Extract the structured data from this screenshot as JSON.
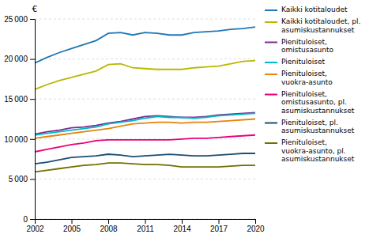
{
  "chart_data": {
    "type": "line",
    "y_label": "€",
    "x": [
      2002,
      2003,
      2004,
      2005,
      2006,
      2007,
      2008,
      2009,
      2010,
      2011,
      2012,
      2013,
      2014,
      2015,
      2016,
      2017,
      2018,
      2019,
      2020
    ],
    "series": [
      {
        "name": "Kaikki kotitaloudet",
        "color": "#1f77b4",
        "values": [
          19500,
          20200,
          20800,
          21300,
          21800,
          22300,
          23200,
          23300,
          23000,
          23300,
          23200,
          23000,
          23000,
          23300,
          23400,
          23500,
          23700,
          23800,
          24000
        ]
      },
      {
        "name": "Kaikki kotitaloudet, pl.\nasumiskustannukset",
        "color": "#b8b800",
        "values": [
          16200,
          16800,
          17300,
          17700,
          18100,
          18500,
          19300,
          19400,
          18900,
          18800,
          18700,
          18700,
          18700,
          18900,
          19000,
          19100,
          19400,
          19700,
          19800
        ]
      },
      {
        "name": "Pienituloiset,\nomistusasunto",
        "color": "#7b2d8b",
        "values": [
          10600,
          10900,
          11100,
          11400,
          11500,
          11700,
          12000,
          12200,
          12500,
          12800,
          12900,
          12800,
          12700,
          12700,
          12800,
          13000,
          13100,
          13200,
          13300
        ]
      },
      {
        "name": "Pienituloiset",
        "color": "#00b8c8",
        "values": [
          10500,
          10700,
          10900,
          11100,
          11300,
          11500,
          11900,
          12100,
          12300,
          12600,
          12800,
          12700,
          12700,
          12600,
          12700,
          12900,
          13000,
          13100,
          13200
        ]
      },
      {
        "name": "Pienituloiset,\nvuokra-asunto",
        "color": "#e8820c",
        "values": [
          10100,
          10300,
          10500,
          10700,
          10900,
          11100,
          11300,
          11600,
          11900,
          12000,
          12100,
          12100,
          12000,
          12100,
          12100,
          12200,
          12300,
          12400,
          12500
        ]
      },
      {
        "name": "Pienituloiset,\nomistusasunto, pl.\nasumiskustannukset",
        "color": "#e8007c",
        "values": [
          8400,
          8700,
          9000,
          9300,
          9500,
          9800,
          9900,
          9900,
          9900,
          9900,
          9900,
          9900,
          10000,
          10100,
          10100,
          10200,
          10300,
          10400,
          10500
        ]
      },
      {
        "name": "Pienituloiset, pl.\nasumiskustannukset",
        "color": "#1a4f72",
        "values": [
          6900,
          7100,
          7400,
          7700,
          7800,
          7900,
          8100,
          8000,
          7800,
          7900,
          8000,
          8100,
          8000,
          7900,
          7900,
          8000,
          8100,
          8200,
          8200
        ]
      },
      {
        "name": "Pienituloiset,\nvuokra-asunto, pl.\nasumiskustannukset",
        "color": "#707000",
        "values": [
          5900,
          6100,
          6300,
          6500,
          6700,
          6800,
          7000,
          7000,
          6900,
          6800,
          6800,
          6700,
          6500,
          6500,
          6500,
          6500,
          6600,
          6700,
          6700
        ]
      }
    ],
    "xlim": [
      2002,
      2020
    ],
    "xticks": [
      2002,
      2005,
      2008,
      2011,
      2014,
      2017,
      2020
    ],
    "ylim": [
      0,
      25000
    ],
    "yticks": [
      0,
      {
        "value": 5000,
        "label": "5 000"
      },
      {
        "value": 10000,
        "label": "10 000"
      },
      {
        "value": 15000,
        "label": "15 000"
      },
      {
        "value": 20000,
        "label": "20 000"
      },
      {
        "value": 25000,
        "label": "25 000"
      }
    ],
    "grid": true,
    "legend": "right"
  }
}
